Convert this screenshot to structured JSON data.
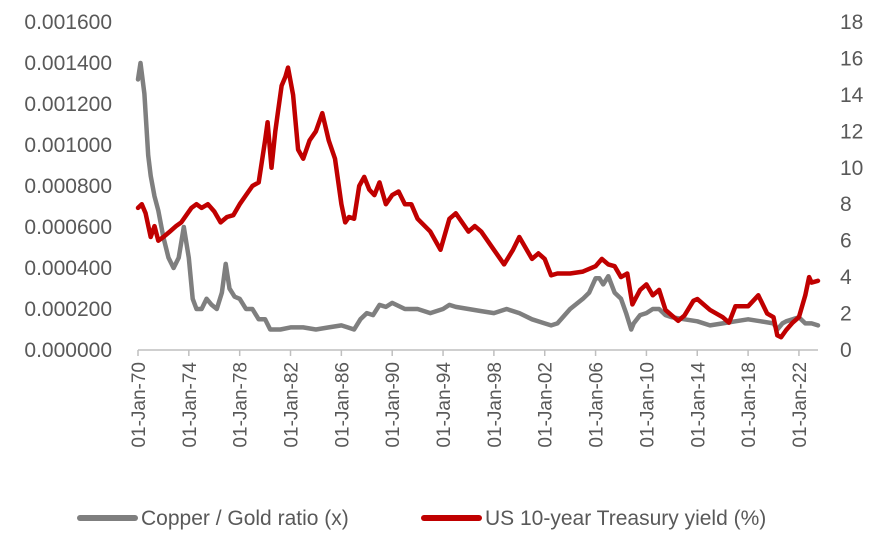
{
  "chart_data": {
    "type": "line",
    "title": "",
    "xlabel": "",
    "ylabel_left": "",
    "ylabel_right": "",
    "xlim": [
      1970.0,
      2023.5
    ],
    "x_tick_labels": [
      "01-Jan-70",
      "01-Jan-74",
      "01-Jan-78",
      "01-Jan-82",
      "01-Jan-86",
      "01-Jan-90",
      "01-Jan-94",
      "01-Jan-98",
      "01-Jan-02",
      "01-Jan-06",
      "01-Jan-10",
      "01-Jan-14",
      "01-Jan-18",
      "01-Jan-22"
    ],
    "x_tick_years": [
      1970,
      1974,
      1978,
      1982,
      1986,
      1990,
      1994,
      1998,
      2002,
      2006,
      2010,
      2014,
      2018,
      2022
    ],
    "y_left": {
      "lim": [
        0,
        0.0016
      ],
      "tick_values": [
        0,
        0.0002,
        0.0004,
        0.0006,
        0.0008,
        0.001,
        0.0012,
        0.0014,
        0.0016
      ],
      "tick_labels": [
        "0.000000",
        "0.000200",
        "0.000400",
        "0.000600",
        "0.000800",
        "0.001000",
        "0.001200",
        "0.001400",
        "0.001600"
      ]
    },
    "y_right": {
      "lim": [
        0,
        18
      ],
      "tick_values": [
        0,
        2,
        4,
        6,
        8,
        10,
        12,
        14,
        16,
        18
      ],
      "tick_labels": [
        "0",
        "2",
        "4",
        "6",
        "8",
        "10",
        "12",
        "14",
        "16",
        "18"
      ]
    },
    "grid": false,
    "legend_position": "bottom",
    "series": [
      {
        "name": "Copper / Gold ratio (x)",
        "axis": "left",
        "color": "#7f7f7f",
        "x": [
          1970.0,
          1970.2,
          1970.5,
          1970.8,
          1971.0,
          1971.3,
          1971.6,
          1972.0,
          1972.4,
          1972.8,
          1973.2,
          1973.6,
          1974.0,
          1974.3,
          1974.6,
          1975.0,
          1975.4,
          1975.8,
          1976.2,
          1976.6,
          1976.9,
          1977.2,
          1977.6,
          1978.0,
          1978.5,
          1979.0,
          1979.5,
          1980.0,
          1980.4,
          1980.8,
          1981.2,
          1982.0,
          1983.0,
          1984.0,
          1985.0,
          1986.0,
          1986.5,
          1987.0,
          1987.5,
          1988.0,
          1988.5,
          1989.0,
          1989.5,
          1990.0,
          1991.0,
          1992.0,
          1993.0,
          1994.0,
          1994.5,
          1995.0,
          1996.0,
          1997.0,
          1998.0,
          1999.0,
          2000.0,
          2001.0,
          2002.0,
          2002.5,
          2003.0,
          2004.0,
          2005.0,
          2005.5,
          2006.0,
          2006.3,
          2006.6,
          2007.0,
          2007.5,
          2008.0,
          2008.4,
          2008.8,
          2009.0,
          2009.5,
          2010.0,
          2010.5,
          2011.0,
          2011.5,
          2012.0,
          2013.0,
          2014.0,
          2015.0,
          2016.0,
          2017.0,
          2018.0,
          2019.0,
          2020.0,
          2020.3,
          2020.7,
          2021.0,
          2021.5,
          2022.0,
          2022.5,
          2023.0,
          2023.5
        ],
        "values": [
          0.00132,
          0.0014,
          0.00125,
          0.00095,
          0.00085,
          0.00075,
          0.00068,
          0.00055,
          0.00045,
          0.0004,
          0.00045,
          0.0006,
          0.00045,
          0.00025,
          0.0002,
          0.0002,
          0.00025,
          0.00022,
          0.0002,
          0.00028,
          0.00042,
          0.0003,
          0.00026,
          0.00025,
          0.0002,
          0.0002,
          0.00015,
          0.00015,
          0.0001,
          0.0001,
          0.0001,
          0.00011,
          0.00011,
          0.0001,
          0.00011,
          0.00012,
          0.00011,
          0.0001,
          0.00015,
          0.00018,
          0.00017,
          0.00022,
          0.00021,
          0.00023,
          0.0002,
          0.0002,
          0.00018,
          0.0002,
          0.00022,
          0.00021,
          0.0002,
          0.00019,
          0.00018,
          0.0002,
          0.00018,
          0.00015,
          0.00013,
          0.00012,
          0.00013,
          0.0002,
          0.00025,
          0.00028,
          0.00035,
          0.00035,
          0.00032,
          0.00036,
          0.00028,
          0.00025,
          0.00018,
          0.0001,
          0.00013,
          0.00017,
          0.00018,
          0.0002,
          0.0002,
          0.00017,
          0.00016,
          0.00015,
          0.00014,
          0.00012,
          0.00013,
          0.00014,
          0.00015,
          0.00014,
          0.00013,
          0.0001,
          0.00013,
          0.00014,
          0.00015,
          0.00016,
          0.00013,
          0.00013,
          0.00012
        ]
      },
      {
        "name": "US 10-year Treasury yield (%)",
        "axis": "right",
        "color": "#c00000",
        "x": [
          1970.0,
          1970.3,
          1970.6,
          1971.0,
          1971.3,
          1971.6,
          1972.0,
          1972.5,
          1973.0,
          1973.4,
          1973.8,
          1974.2,
          1974.6,
          1975.0,
          1975.5,
          1976.0,
          1976.5,
          1977.0,
          1977.5,
          1978.0,
          1978.5,
          1979.0,
          1979.5,
          1980.0,
          1980.2,
          1980.5,
          1980.8,
          1981.0,
          1981.3,
          1981.6,
          1981.8,
          1982.2,
          1982.6,
          1983.0,
          1983.5,
          1984.0,
          1984.5,
          1985.0,
          1985.5,
          1986.0,
          1986.3,
          1986.6,
          1987.0,
          1987.4,
          1987.8,
          1988.2,
          1988.6,
          1989.0,
          1989.5,
          1990.0,
          1990.5,
          1991.0,
          1991.5,
          1992.0,
          1993.0,
          1993.8,
          1994.5,
          1995.0,
          1996.0,
          1996.5,
          1997.0,
          1998.0,
          1998.8,
          1999.5,
          2000.0,
          2001.0,
          2001.5,
          2002.0,
          2002.5,
          2003.0,
          2004.0,
          2005.0,
          2006.0,
          2006.5,
          2007.0,
          2007.5,
          2008.0,
          2008.5,
          2008.9,
          2009.5,
          2010.0,
          2010.5,
          2011.0,
          2011.5,
          2012.0,
          2012.5,
          2013.0,
          2013.7,
          2014.0,
          2015.0,
          2016.0,
          2016.5,
          2017.0,
          2018.0,
          2018.8,
          2019.5,
          2020.0,
          2020.3,
          2020.6,
          2021.0,
          2021.5,
          2022.0,
          2022.5,
          2022.8,
          2023.0,
          2023.5
        ],
        "values": [
          7.8,
          8.0,
          7.5,
          6.2,
          6.8,
          6.0,
          6.2,
          6.5,
          6.8,
          7.0,
          7.4,
          7.8,
          8.0,
          7.8,
          8.0,
          7.6,
          7.0,
          7.3,
          7.4,
          8.0,
          8.5,
          9.0,
          9.2,
          11.5,
          12.5,
          10.0,
          12.0,
          13.0,
          14.5,
          15.0,
          15.5,
          14.0,
          11.0,
          10.5,
          11.5,
          12.0,
          13.0,
          11.5,
          10.5,
          8.0,
          7.0,
          7.3,
          7.2,
          9.0,
          9.5,
          8.8,
          8.5,
          9.2,
          8.0,
          8.5,
          8.7,
          8.0,
          8.0,
          7.2,
          6.5,
          5.5,
          7.2,
          7.5,
          6.5,
          6.8,
          6.5,
          5.5,
          4.7,
          5.5,
          6.2,
          5.0,
          5.3,
          5.0,
          4.1,
          4.2,
          4.2,
          4.3,
          4.6,
          5.0,
          4.7,
          4.6,
          4.0,
          4.2,
          2.5,
          3.3,
          3.6,
          3.0,
          3.3,
          2.2,
          1.9,
          1.6,
          1.9,
          2.7,
          2.8,
          2.2,
          1.8,
          1.5,
          2.4,
          2.4,
          3.0,
          2.0,
          1.8,
          0.8,
          0.7,
          1.1,
          1.5,
          1.8,
          3.0,
          4.0,
          3.7,
          3.8
        ]
      }
    ]
  }
}
